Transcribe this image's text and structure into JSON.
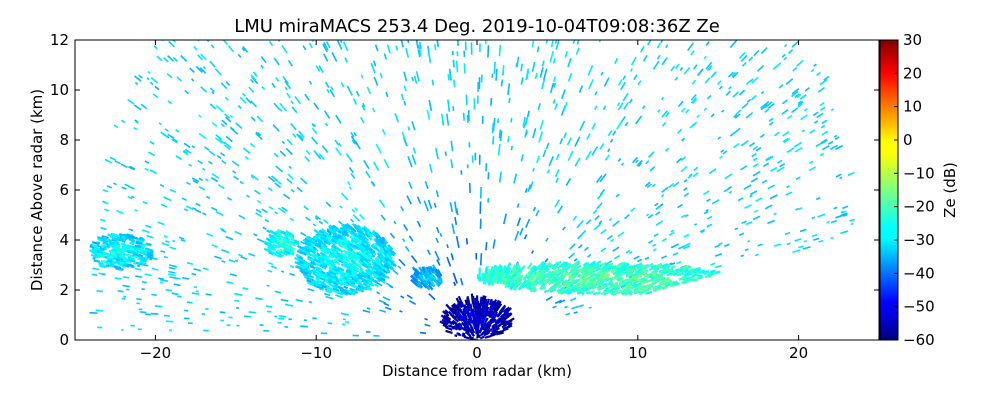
{
  "chart_data": {
    "type": "heatmap",
    "title": "LMU miraMACS 253.4 Deg. 2019-10-04T09:08:36Z  Ze",
    "xlabel": "Distance from radar (km)",
    "ylabel": "Distance Above radar  (km)",
    "xlim": [
      -25,
      25
    ],
    "ylim": [
      0,
      12
    ],
    "xticks": [
      -20,
      -10,
      0,
      10,
      20
    ],
    "xtick_labels": [
      "−20",
      "−10",
      "0",
      "10",
      "20"
    ],
    "yticks": [
      0,
      2,
      4,
      6,
      8,
      10,
      12
    ],
    "ytick_labels": [
      "0",
      "2",
      "4",
      "6",
      "8",
      "10",
      "12"
    ],
    "colorbar": {
      "label": "Ze (dB)",
      "range": [
        -60,
        30
      ],
      "ticks": [
        -60,
        -50,
        -40,
        -30,
        -20,
        -10,
        0,
        10,
        20,
        30
      ],
      "tick_labels": [
        "−60",
        "−50",
        "−40",
        "−30",
        "−20",
        "−10",
        "0",
        "10",
        "20",
        "30"
      ],
      "colormap": "jet"
    },
    "scan": {
      "radar_position_km": [
        0,
        0
      ],
      "max_range_km": 24,
      "left_elevation_limit_deg": 1,
      "right_elevation_limit_deg": 10,
      "background_noise_dbz": [
        -33,
        -27
      ]
    },
    "features": [
      {
        "name": "near-radar dense low returns",
        "x_km": [
          -2,
          2
        ],
        "z_km": [
          0,
          1.5
        ],
        "ze_dbz": -52
      },
      {
        "name": "left low echo band",
        "x_km": [
          -24,
          -20
        ],
        "z_km": [
          2.8,
          4.2
        ],
        "ze_dbz": -25
      },
      {
        "name": "echo patch near -12 km",
        "x_km": [
          -13,
          -11
        ],
        "z_km": [
          3.3,
          4.3
        ],
        "ze_dbz": -22
      },
      {
        "name": "central echo cluster",
        "x_km": [
          -11,
          -5
        ],
        "z_km": [
          1.8,
          4.5
        ],
        "ze_dbz": -25
      },
      {
        "name": "small echo near -3 km",
        "x_km": [
          -4,
          -2
        ],
        "z_km": [
          2.0,
          2.8
        ],
        "ze_dbz": -30
      },
      {
        "name": "right elongated echo layer",
        "x_km": [
          0,
          16
        ],
        "z_km": [
          1.8,
          3.0
        ],
        "ze_dbz": -18
      }
    ]
  }
}
